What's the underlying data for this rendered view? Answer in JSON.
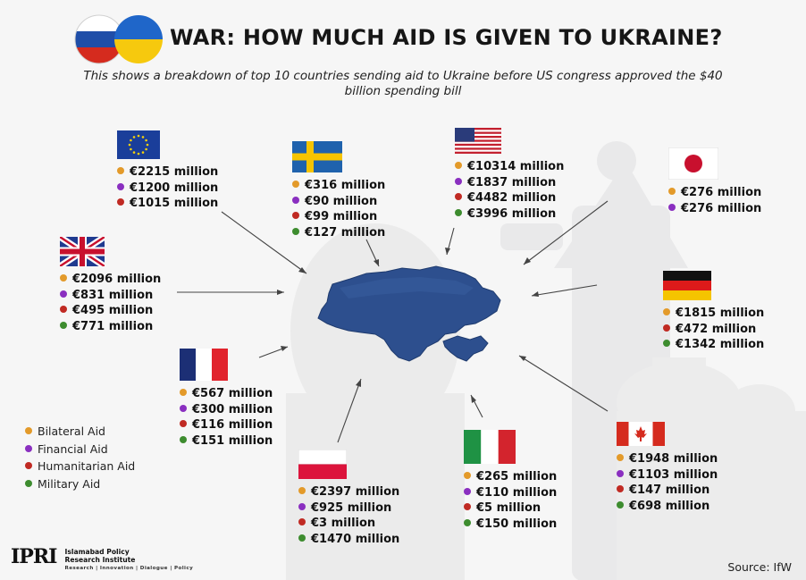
{
  "title": "WAR: HOW MUCH AID IS GIVEN TO UKRAINE?",
  "subtitle": "This shows a breakdown of top 10 countries sending aid to Ukraine before US congress approved the $40 billion spending bill",
  "colors": {
    "bilateral": "#e39a2a",
    "financial": "#8a2fc0",
    "humanitarian": "#c02a23",
    "military": "#3d8c2f",
    "map": "#2d4f8e"
  },
  "legend": [
    {
      "label": "Bilateral Aid",
      "type": "bilateral"
    },
    {
      "label": "Financial Aid",
      "type": "financial"
    },
    {
      "label": "Humanitarian Aid",
      "type": "humanitarian"
    },
    {
      "label": "Military Aid",
      "type": "military"
    }
  ],
  "countries": [
    {
      "name": "European Union",
      "flag": "eu",
      "aid": [
        {
          "type": "bilateral",
          "text": "€2215 million"
        },
        {
          "type": "financial",
          "text": "€1200 million"
        },
        {
          "type": "humanitarian",
          "text": "€1015 million"
        }
      ]
    },
    {
      "name": "Sweden",
      "flag": "se",
      "aid": [
        {
          "type": "bilateral",
          "text": "€316 million"
        },
        {
          "type": "financial",
          "text": "€90 million"
        },
        {
          "type": "humanitarian",
          "text": "€99 million"
        },
        {
          "type": "military",
          "text": "€127 million"
        }
      ]
    },
    {
      "name": "United States",
      "flag": "us",
      "aid": [
        {
          "type": "bilateral",
          "text": "€10314 million"
        },
        {
          "type": "financial",
          "text": "€1837 million"
        },
        {
          "type": "humanitarian",
          "text": "€4482 million"
        },
        {
          "type": "military",
          "text": "€3996 million"
        }
      ]
    },
    {
      "name": "Japan",
      "flag": "jp",
      "aid": [
        {
          "type": "bilateral",
          "text": "€276 million"
        },
        {
          "type": "financial",
          "text": "€276 million"
        }
      ]
    },
    {
      "name": "United Kingdom",
      "flag": "uk",
      "aid": [
        {
          "type": "bilateral",
          "text": "€2096 million"
        },
        {
          "type": "financial",
          "text": "€831 million"
        },
        {
          "type": "humanitarian",
          "text": "€495 million"
        },
        {
          "type": "military",
          "text": "€771 million"
        }
      ]
    },
    {
      "name": "Germany",
      "flag": "de",
      "aid": [
        {
          "type": "bilateral",
          "text": "€1815 million"
        },
        {
          "type": "humanitarian",
          "text": "€472 million"
        },
        {
          "type": "military",
          "text": "€1342 million"
        }
      ]
    },
    {
      "name": "France",
      "flag": "fr",
      "aid": [
        {
          "type": "bilateral",
          "text": "€567 million"
        },
        {
          "type": "financial",
          "text": "€300 million"
        },
        {
          "type": "humanitarian",
          "text": "€116 million"
        },
        {
          "type": "military",
          "text": "€151 million"
        }
      ]
    },
    {
      "name": "Poland",
      "flag": "pl",
      "aid": [
        {
          "type": "bilateral",
          "text": "€2397 million"
        },
        {
          "type": "financial",
          "text": "€925 million"
        },
        {
          "type": "humanitarian",
          "text": "€3 million"
        },
        {
          "type": "military",
          "text": "€1470 million"
        }
      ]
    },
    {
      "name": "Italy",
      "flag": "it",
      "aid": [
        {
          "type": "bilateral",
          "text": "€265 million"
        },
        {
          "type": "financial",
          "text": "€110 million"
        },
        {
          "type": "humanitarian",
          "text": "€5 million"
        },
        {
          "type": "military",
          "text": "€150 million"
        }
      ]
    },
    {
      "name": "Canada",
      "flag": "ca",
      "aid": [
        {
          "type": "bilateral",
          "text": "€1948 million"
        },
        {
          "type": "financial",
          "text": "€1103 million"
        },
        {
          "type": "humanitarian",
          "text": "€147 million"
        },
        {
          "type": "military",
          "text": "€698 million"
        }
      ]
    }
  ],
  "logo": {
    "mark": "IPRI",
    "name_line1": "Islamabad Policy",
    "name_line2": "Research Institute",
    "tagline": "Research | Innovation | Dialogue | Policy"
  },
  "source": "Source: IfW"
}
